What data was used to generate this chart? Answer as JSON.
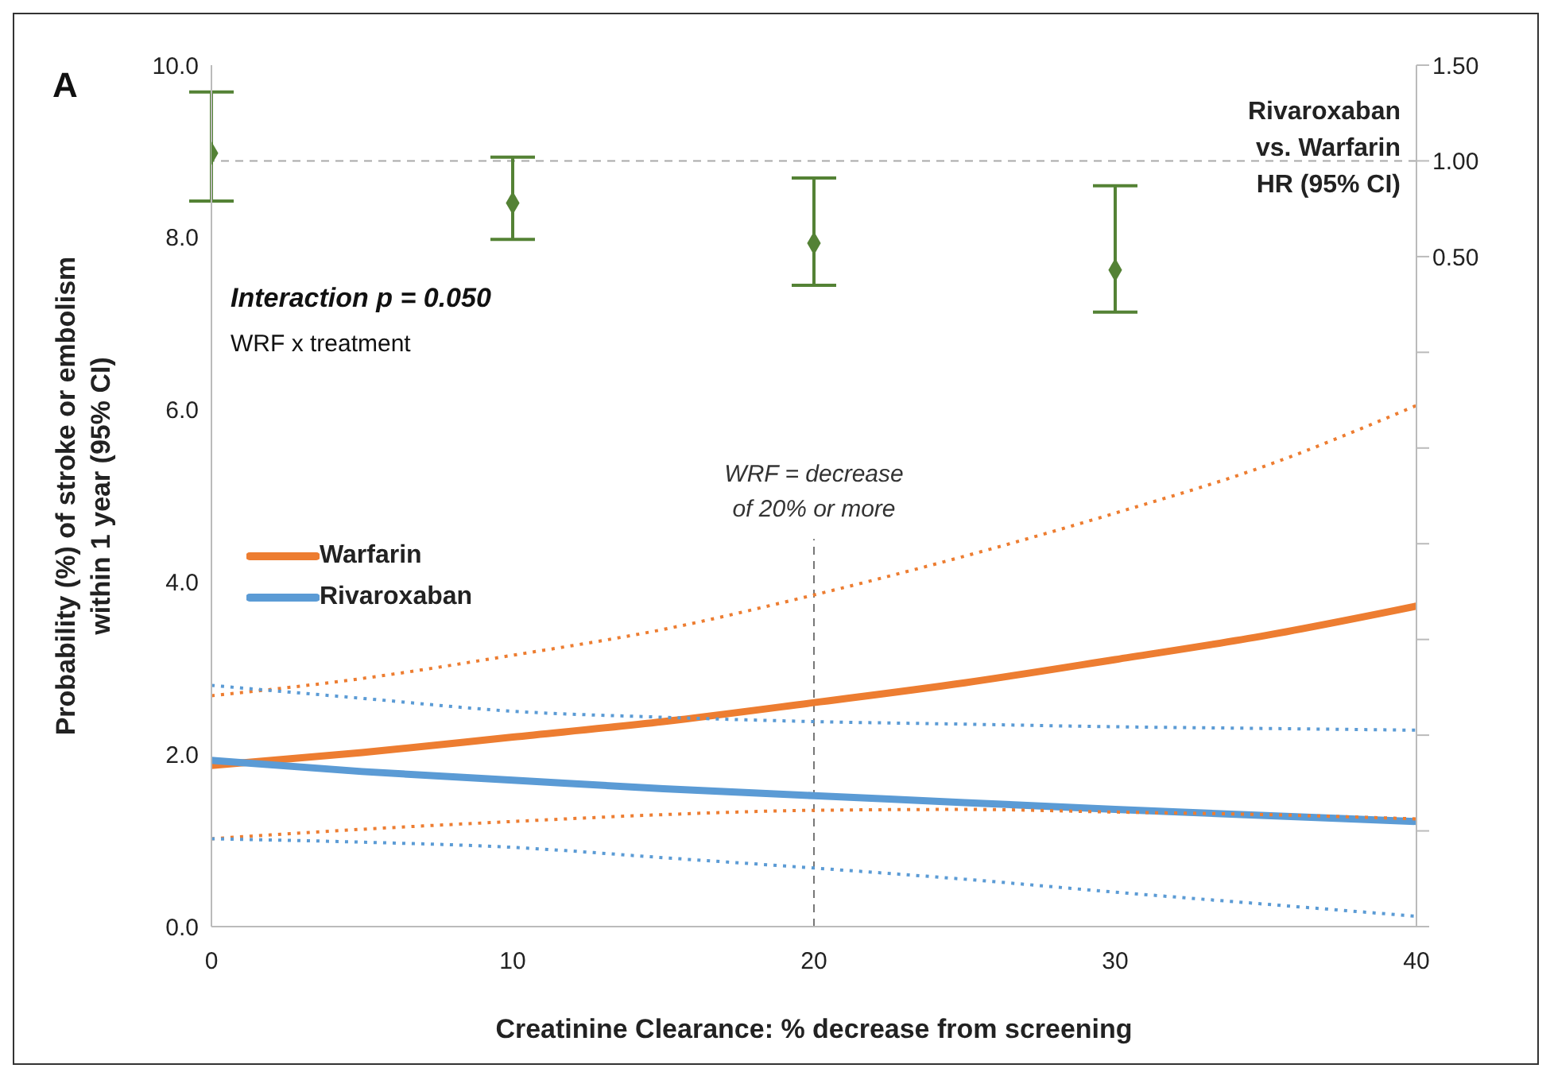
{
  "chart_data": {
    "type": "line",
    "xlabel": "Creatinine Clearance: % decrease from screening",
    "ylabel": "Probability (%) of stroke or embolism within 1 year (95% CI)",
    "y2label": "Rivaroxaban vs. Warfarin HR (95% CI)",
    "annotations": [
      "A",
      "Interaction p = 0.050",
      "WRF x treatment"
    ],
    "x": [
      0,
      5,
      10,
      15,
      20,
      25,
      30,
      35,
      40
    ],
    "series": [
      {
        "name": "Warfarin",
        "color": "#ed7d31",
        "values": [
          1.87,
          2.02,
          2.2,
          2.38,
          2.6,
          2.83,
          3.1,
          3.38,
          3.72
        ]
      },
      {
        "name": "Rivaroxaban",
        "color": "#5b9bd5",
        "values": [
          1.93,
          1.8,
          1.7,
          1.6,
          1.52,
          1.44,
          1.36,
          1.29,
          1.22
        ]
      },
      {
        "color": "#ed7d31",
        "line_style": "dotted",
        "values": [
          2.68,
          2.88,
          3.15,
          3.45,
          3.85,
          4.3,
          4.8,
          5.35,
          6.05
        ]
      },
      {
        "color": "#ed7d31",
        "line_style": "dotted",
        "values": [
          1.02,
          1.13,
          1.22,
          1.3,
          1.35,
          1.36,
          1.33,
          1.3,
          1.25
        ]
      },
      {
        "color": "#5b9bd5",
        "line_style": "dotted",
        "values": [
          2.8,
          2.65,
          2.5,
          2.43,
          2.38,
          2.35,
          2.32,
          2.3,
          2.28
        ]
      },
      {
        "color": "#5b9bd5",
        "line_style": "dotted",
        "values": [
          1.02,
          0.98,
          0.92,
          0.8,
          0.68,
          0.55,
          0.4,
          0.26,
          0.12
        ]
      },
      {
        "type": "scatter",
        "axis": "y2",
        "color": "#548235",
        "marker": "diamond",
        "x": [
          0,
          10,
          20,
          30
        ],
        "values": [
          1.04,
          0.78,
          0.57,
          0.43
        ],
        "errors": [
          [
            0.79,
            1.36
          ],
          [
            0.59,
            1.02
          ],
          [
            0.35,
            0.91
          ],
          [
            0.21,
            0.87
          ]
        ]
      }
    ],
    "xlim": [
      0,
      40
    ],
    "xticks": [
      0,
      10,
      20,
      30,
      40
    ],
    "ylim": [
      0,
      10
    ],
    "yticks": [
      {
        "value": 0,
        "label": "0.0"
      },
      {
        "value": 2,
        "label": "2.0"
      },
      {
        "value": 4,
        "label": "4.0"
      },
      {
        "value": 6,
        "label": "6.0"
      },
      {
        "value": 8,
        "label": "8.0"
      },
      {
        "value": 10,
        "label": "10.0"
      }
    ],
    "y2lim": [
      -3,
      1.5
    ],
    "y2ticks": [
      {
        "value": -3,
        "label": null
      },
      {
        "value": -2.5,
        "label": null
      },
      {
        "value": -2,
        "label": null
      },
      {
        "value": -1.5,
        "label": null
      },
      {
        "value": -1,
        "label": null
      },
      {
        "value": -0.5,
        "label": null
      },
      {
        "value": 0,
        "label": null
      },
      {
        "value": 0.5,
        "label": "0.50"
      },
      {
        "value": 1,
        "label": "1.00"
      },
      {
        "value": 1.5,
        "label": "1.50"
      }
    ],
    "ref_lines": [
      {
        "axis": "y2",
        "value": 1,
        "line_style": "dashed",
        "color": "#aaaaaa"
      },
      {
        "axis": "x",
        "value": 20,
        "label": "WRF = decrease of 20% or more",
        "line_style": "dashed",
        "color": "#777777"
      }
    ],
    "legend": "left",
    "grid": false,
    "marker": "none",
    "line_style": "solid"
  }
}
